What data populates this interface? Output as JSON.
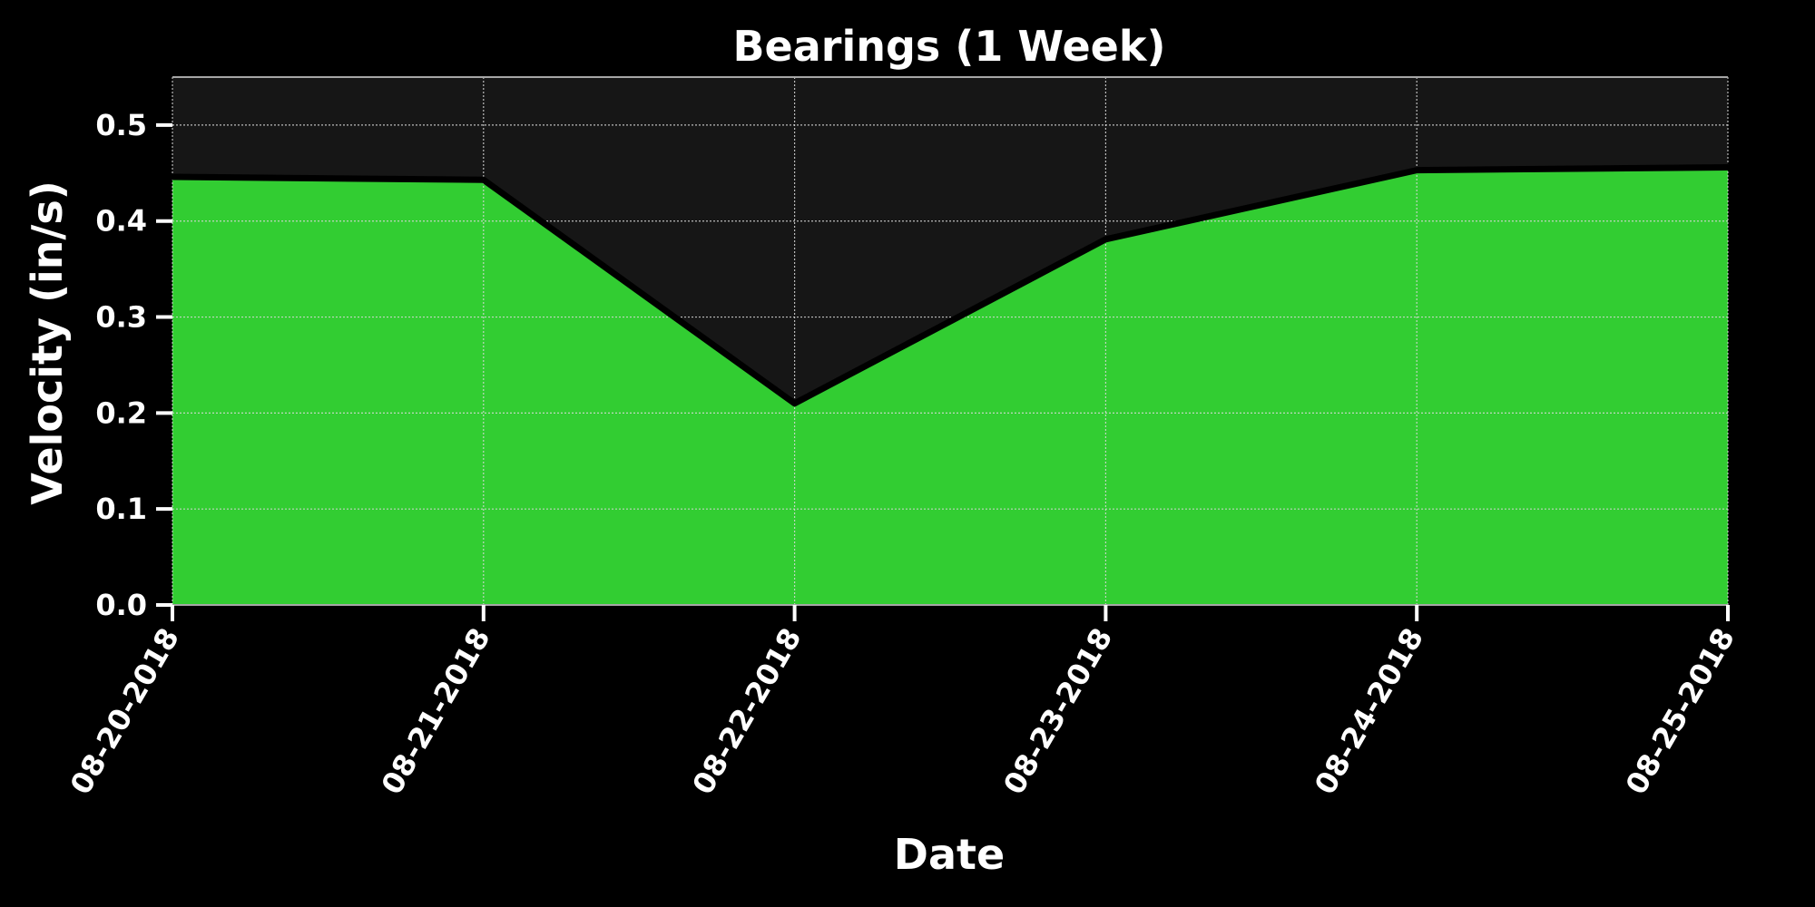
{
  "chart_data": {
    "type": "area",
    "title": "Bearings (1 Week)",
    "xlabel": "Date",
    "ylabel": "Velocity (in/s)",
    "x": [
      "08-20-2018",
      "08-21-2018",
      "08-22-2018",
      "08-23-2018",
      "08-24-2018",
      "08-25-2018"
    ],
    "series": [
      {
        "values": [
          0.446,
          0.443,
          0.21,
          0.381,
          0.453,
          0.456
        ]
      }
    ],
    "x_tick_labels": [
      "08-20-2018",
      "08-21-2018",
      "08-22-2018",
      "08-23-2018",
      "08-24-2018",
      "08-25-2018"
    ],
    "y_ticks": [
      0.0,
      0.1,
      0.2,
      0.3,
      0.4,
      0.5
    ],
    "y_tick_labels": [
      "0.0",
      "0.1",
      "0.2",
      "0.3",
      "0.4",
      "0.5"
    ],
    "ylim": [
      0,
      0.55
    ],
    "grid": true,
    "colors": {
      "background": "#000000",
      "plot_background": "#161616",
      "fill": "#32cd32",
      "line": "#000000",
      "text": "#ffffff",
      "grid": "#d9d9d9",
      "frame": "#a6a6a6"
    }
  }
}
